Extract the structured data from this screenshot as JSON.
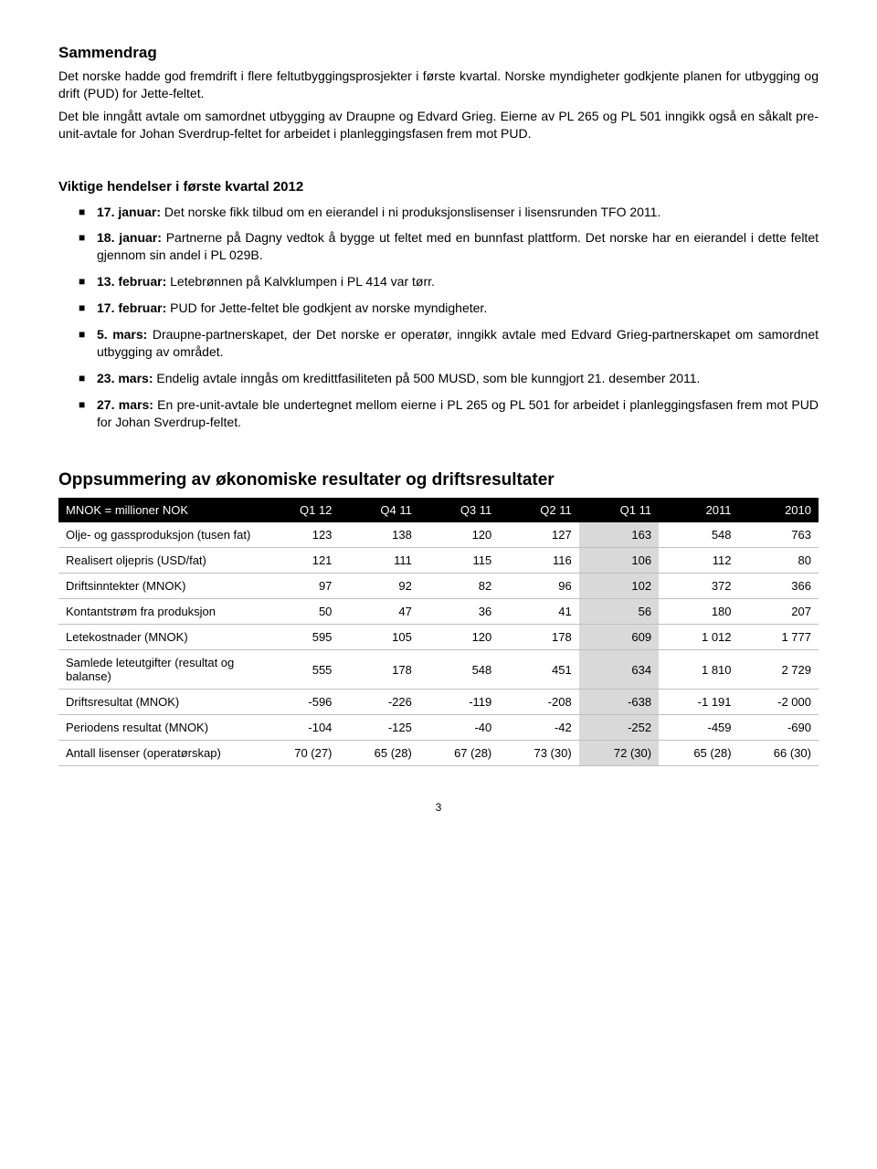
{
  "title": "Sammendrag",
  "intro": [
    "Det norske hadde god fremdrift i flere feltutbyggingsprosjekter i første kvartal. Norske myndigheter godkjente planen for utbygging og drift (PUD) for Jette-feltet.",
    "Det ble inngått avtale om samordnet utbygging av Draupne og Edvard Grieg. Eierne av PL 265 og PL 501 inngikk også en såkalt pre-unit-avtale for Johan Sverdrup-feltet for arbeidet i planleggingsfasen frem mot PUD."
  ],
  "events_heading": "Viktige hendelser i første kvartal 2012",
  "events": [
    {
      "date": "17. januar:",
      "text": " Det norske fikk tilbud om en eierandel i ni produksjonslisenser i lisensrunden TFO 2011."
    },
    {
      "date": "18. januar:",
      "text": " Partnerne på Dagny vedtok å bygge ut feltet med en bunnfast plattform. Det norske har en eierandel i dette feltet gjennom sin andel i PL 029B."
    },
    {
      "date": "13. februar:",
      "text": " Letebrønnen på Kalvklumpen i PL 414 var tørr."
    },
    {
      "date": "17. februar:",
      "text": " PUD for Jette-feltet ble godkjent av norske myndigheter."
    },
    {
      "date": "5. mars:",
      "text": " Draupne-partnerskapet, der Det norske er operatør, inngikk avtale med Edvard Grieg-partnerskapet om samordnet utbygging av området."
    },
    {
      "date": "23. mars:",
      "text": " Endelig avtale inngås om kredittfasiliteten på 500 MUSD, som ble kunngjort 21. desember 2011."
    },
    {
      "date": "27. mars:",
      "text": " En pre-unit-avtale ble undertegnet mellom eierne i PL 265 og PL 501 for arbeidet i planleggingsfasen frem mot PUD for Johan Sverdrup-feltet."
    }
  ],
  "summary_heading": "Oppsummering av økonomiske resultater og driftsresultater",
  "table": {
    "header_label": "MNOK = millioner NOK",
    "columns": [
      "Q1 12",
      "Q4 11",
      "Q3 11",
      "Q2 11",
      "Q1 11",
      "2011",
      "2010"
    ],
    "highlight_col_index": 4,
    "rows": [
      {
        "label": "Olje- og gassproduksjon (tusen fat)",
        "cells": [
          "123",
          "138",
          "120",
          "127",
          "163",
          "548",
          "763"
        ]
      },
      {
        "label": "Realisert oljepris (USD/fat)",
        "cells": [
          "121",
          "111",
          "115",
          "116",
          "106",
          "112",
          "80"
        ]
      },
      {
        "label": "Driftsinntekter (MNOK)",
        "cells": [
          "97",
          "92",
          "82",
          "96",
          "102",
          "372",
          "366"
        ]
      },
      {
        "label": "Kontantstrøm fra produksjon",
        "cells": [
          "50",
          "47",
          "36",
          "41",
          "56",
          "180",
          "207"
        ]
      },
      {
        "label": "Letekostnader (MNOK)",
        "cells": [
          "595",
          "105",
          "120",
          "178",
          "609",
          "1 012",
          "1 777"
        ]
      },
      {
        "label": "Samlede leteutgifter (resultat og balanse)",
        "cells": [
          "555",
          "178",
          "548",
          "451",
          "634",
          "1 810",
          "2 729"
        ]
      },
      {
        "label": "Driftsresultat (MNOK)",
        "cells": [
          "-596",
          "-226",
          "-119",
          "-208",
          "-638",
          "-1 191",
          "-2 000"
        ]
      },
      {
        "label": "Periodens resultat (MNOK)",
        "cells": [
          "-104",
          "-125",
          "-40",
          "-42",
          "-252",
          "-459",
          "-690"
        ]
      },
      {
        "label": "Antall lisenser (operatørskap)",
        "cells": [
          "70 (27)",
          "65 (28)",
          "67 (28)",
          "73 (30)",
          "72 (30)",
          "65 (28)",
          "66 (30)"
        ]
      }
    ]
  },
  "page_number": "3"
}
